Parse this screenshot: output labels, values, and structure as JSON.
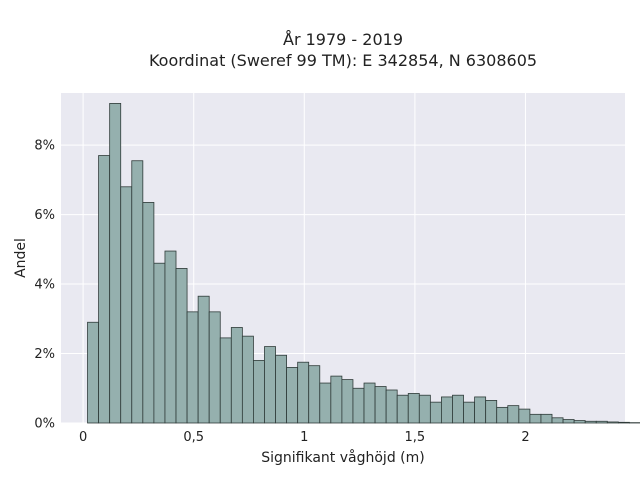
{
  "chart_data": {
    "type": "bar",
    "title": "År 1979 - 2019",
    "subtitle": "Koordinat (Sweref 99 TM): E 342854, N 6308605",
    "xlabel": "Signifikant våghöjd (m)",
    "ylabel": "Andel",
    "xlim": [
      -0.1,
      2.45
    ],
    "ylim": [
      0,
      9.5
    ],
    "x_ticks": [
      0,
      0.5,
      1,
      1.5,
      2
    ],
    "x_tick_labels": [
      "0",
      "0,5",
      "1",
      "1,5",
      "2"
    ],
    "y_ticks": [
      0,
      2,
      4,
      6,
      8
    ],
    "y_tick_labels": [
      "0%",
      "2%",
      "4%",
      "6%",
      "8%"
    ],
    "bin_start": 0.02,
    "bin_width": 0.05,
    "values": [
      2.9,
      7.7,
      9.2,
      6.8,
      7.55,
      6.35,
      4.6,
      4.95,
      4.45,
      3.2,
      3.65,
      3.2,
      2.45,
      2.75,
      2.5,
      1.8,
      2.2,
      1.95,
      1.6,
      1.75,
      1.65,
      1.15,
      1.35,
      1.25,
      1.0,
      1.15,
      1.05,
      0.95,
      0.8,
      0.85,
      0.8,
      0.6,
      0.75,
      0.8,
      0.6,
      0.75,
      0.65,
      0.45,
      0.5,
      0.4,
      0.25,
      0.25,
      0.15,
      0.1,
      0.07,
      0.05,
      0.05,
      0.03,
      0.02,
      0.01
    ],
    "grid": true,
    "colors": {
      "bar_fill": "#95b0ae",
      "bar_stroke": "#2f3b39",
      "plot_background": "#e9e9f1",
      "grid": "#ffffff"
    }
  }
}
